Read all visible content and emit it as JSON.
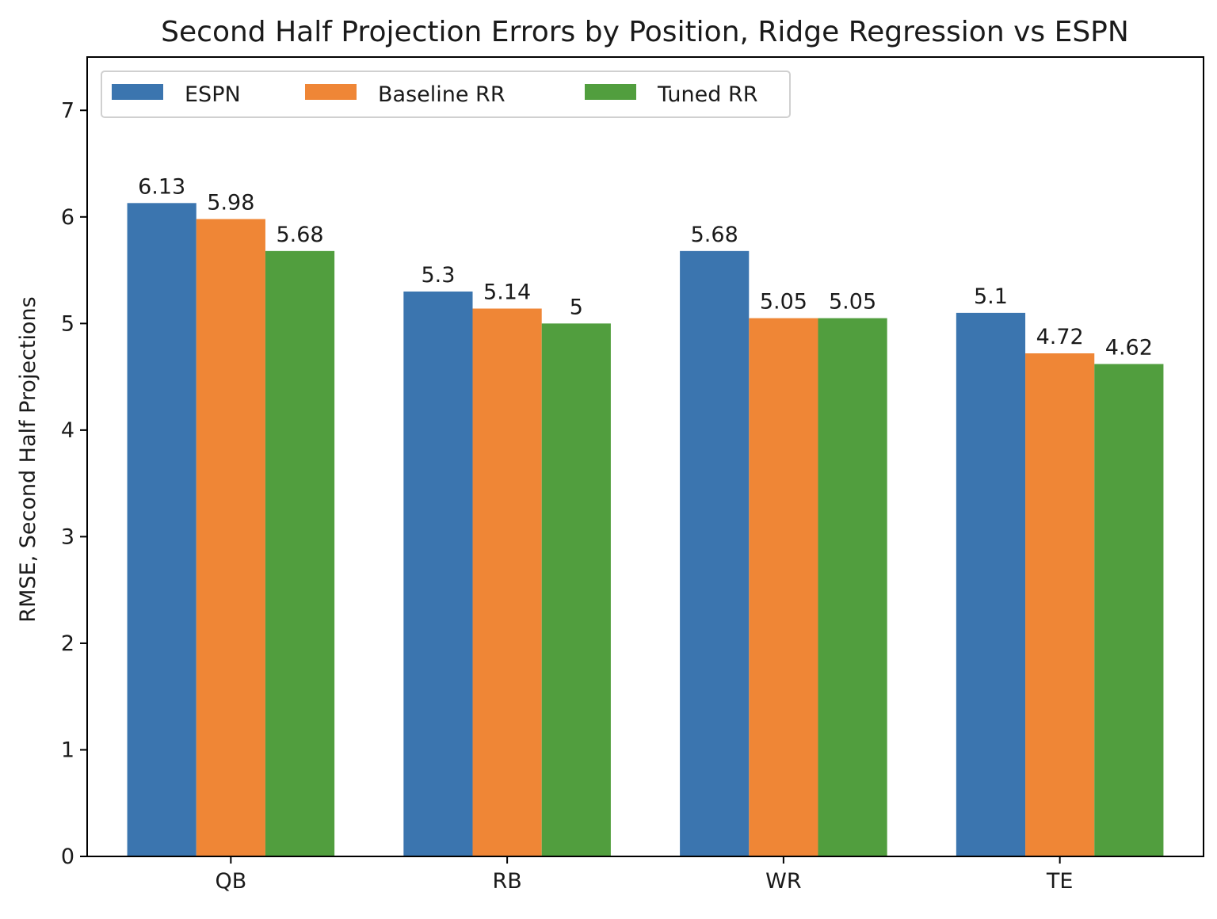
{
  "chart_data": {
    "type": "bar",
    "title": "Second Half Projection Errors by Position, Ridge Regression vs ESPN",
    "xlabel": "",
    "ylabel": "RMSE, Second Half Projections",
    "categories": [
      "QB",
      "RB",
      "WR",
      "TE"
    ],
    "ylim": [
      0,
      7.5
    ],
    "yticks": [
      0,
      1,
      2,
      3,
      4,
      5,
      6,
      7
    ],
    "grid": false,
    "legend": {
      "placement": "top-left",
      "orientation": "horizontal"
    },
    "series": [
      {
        "name": "ESPN",
        "color": "#3b75af",
        "values": [
          6.13,
          5.3,
          5.68,
          5.1
        ],
        "labels": [
          "6.13",
          "5.3",
          "5.68",
          "5.1"
        ]
      },
      {
        "name": "Baseline RR",
        "color": "#ef8636",
        "values": [
          5.98,
          5.14,
          5.05,
          4.72
        ],
        "labels": [
          "5.98",
          "5.14",
          "5.05",
          "4.72"
        ]
      },
      {
        "name": "Tuned RR",
        "color": "#519e3e",
        "values": [
          5.68,
          5.0,
          5.05,
          4.62
        ],
        "labels": [
          "5.68",
          "5",
          "5.05",
          "4.62"
        ]
      }
    ]
  }
}
